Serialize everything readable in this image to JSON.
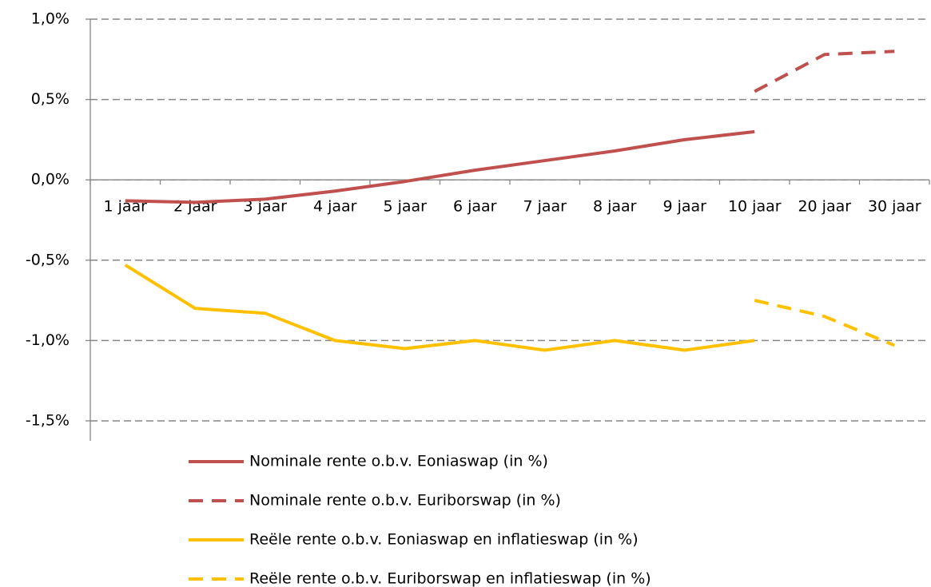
{
  "chart_data": {
    "type": "line",
    "categories": [
      "1 jaar",
      "2 jaar",
      "3 jaar",
      "4 jaar",
      "5 jaar",
      "6 jaar",
      "7 jaar",
      "8 jaar",
      "9 jaar",
      "10 jaar",
      "20 jaar",
      "30 jaar"
    ],
    "series": [
      {
        "name": "Nominale rente o.b.v. Eoniaswap (in %)",
        "color": "#c0504d",
        "dashed": false,
        "values": [
          -0.13,
          -0.14,
          -0.12,
          -0.07,
          -0.01,
          0.06,
          0.12,
          0.18,
          0.25,
          0.3,
          null,
          null
        ]
      },
      {
        "name": "Nominale rente o.b.v. Euriborswap (in %)",
        "color": "#c0504d",
        "dashed": true,
        "values": [
          null,
          null,
          null,
          null,
          null,
          null,
          null,
          null,
          null,
          0.55,
          0.78,
          0.8
        ]
      },
      {
        "name": "Reële rente o.b.v. Eoniaswap en inflatieswap (in %)",
        "color": "#ffc000",
        "dashed": false,
        "values": [
          -0.53,
          -0.8,
          -0.83,
          -1.0,
          -1.05,
          -1.0,
          -1.06,
          -1.0,
          -1.06,
          -1.0,
          null,
          null
        ]
      },
      {
        "name": "Reële rente o.b.v. Euriborswap en inflatieswap (in %)",
        "color": "#ffc000",
        "dashed": true,
        "values": [
          null,
          null,
          null,
          null,
          null,
          null,
          null,
          null,
          null,
          -0.75,
          -0.85,
          -1.03
        ]
      }
    ],
    "ylim": [
      -1.5,
      1.0
    ],
    "yticks": [
      {
        "value": 1.0,
        "label": "1,0%"
      },
      {
        "value": 0.5,
        "label": "0,5%"
      },
      {
        "value": 0.0,
        "label": "0,0%"
      },
      {
        "value": -0.5,
        "label": "-0,5%"
      },
      {
        "value": -1.0,
        "label": "-1,0%"
      },
      {
        "value": -1.5,
        "label": "-1,5%"
      }
    ],
    "grid": true,
    "legend": "bottom"
  }
}
